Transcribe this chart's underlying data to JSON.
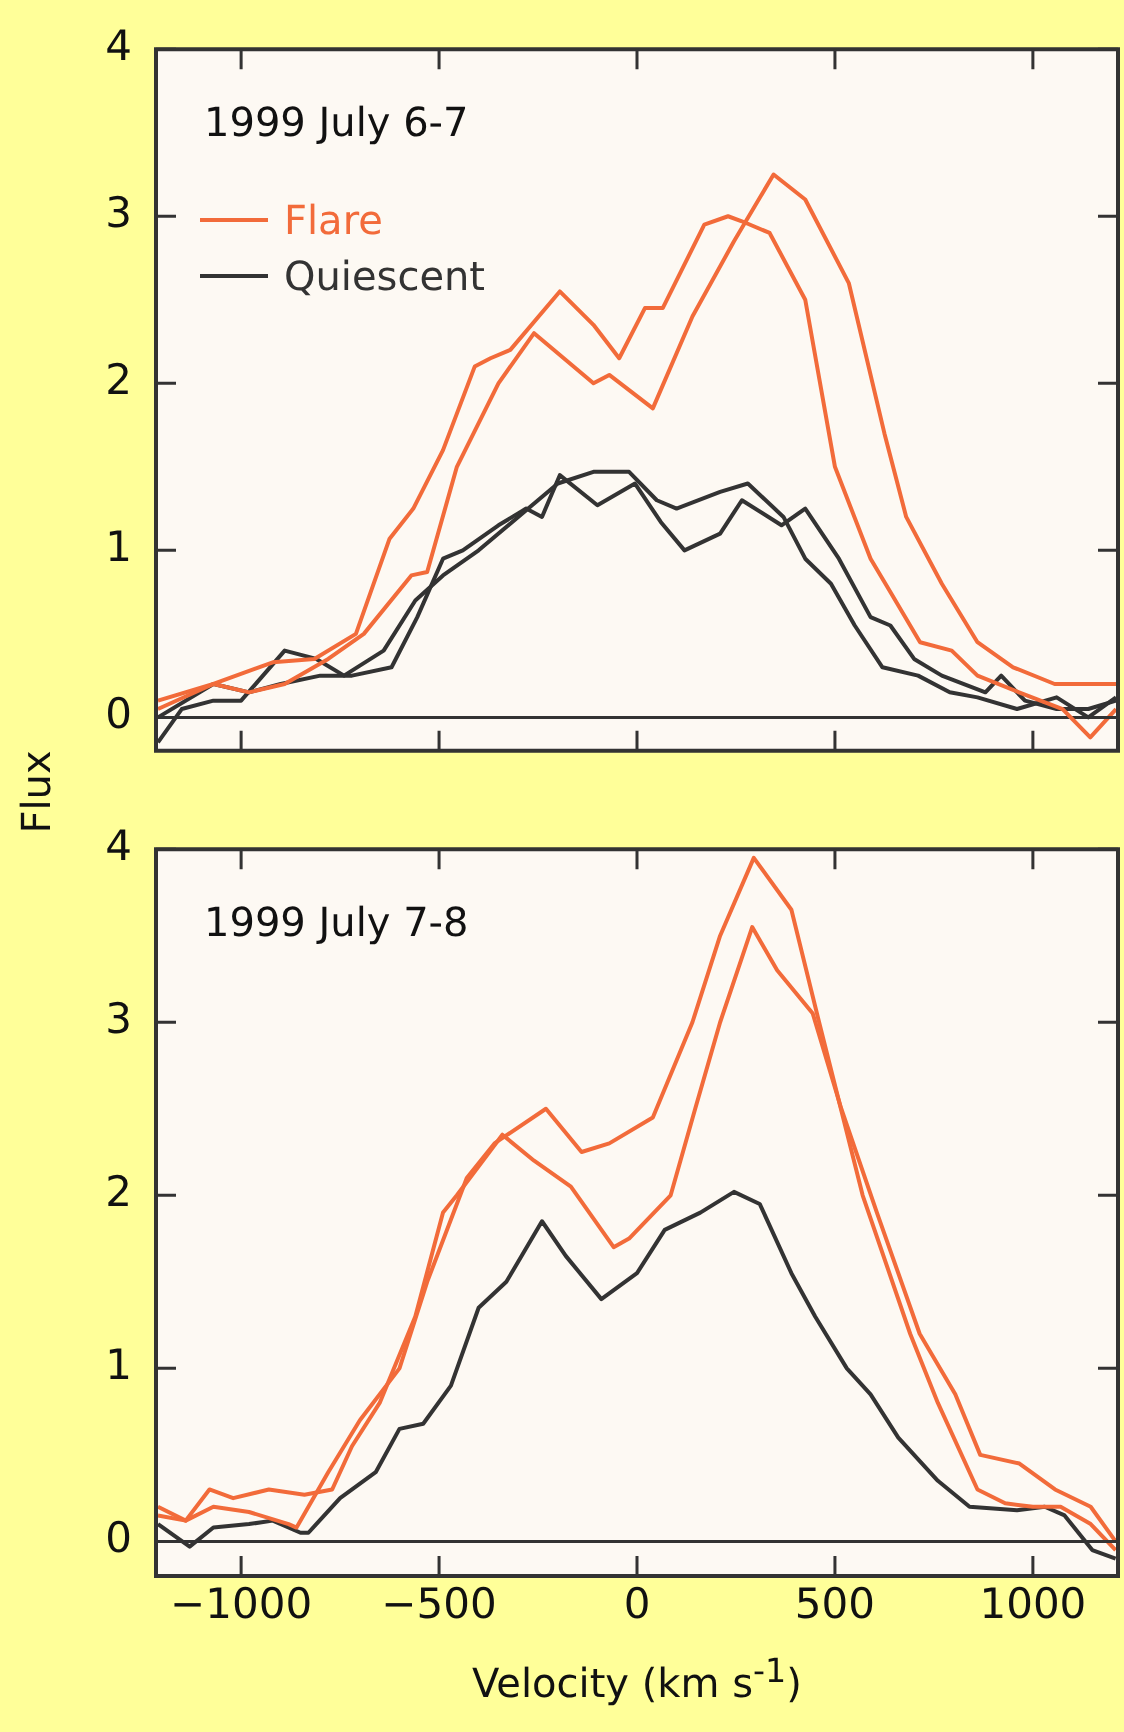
{
  "chart_data": [
    {
      "type": "line",
      "ylabel": "Flux",
      "annotations": [
        "1999 July 6-7"
      ],
      "legend": "top left",
      "tick_labels": "y",
      "marker": "none",
      "line_style": "solid",
      "xlim": [
        -1215,
        1215
      ],
      "xticks": [
        -1000,
        -500,
        0,
        500,
        1000
      ],
      "ylim": [
        -0.2,
        4
      ],
      "yticks": [
        0,
        1,
        2,
        3,
        4
      ],
      "ref_lines": [
        {
          "axis": "y",
          "value": 0,
          "color": "#333333"
        }
      ],
      "series": [
        {
          "name": "Flare",
          "color": "#f26b3a",
          "x": [
            -1210,
            -1070,
            -920,
            -815,
            -710,
            -625,
            -565,
            -490,
            -410,
            -370,
            -320,
            -195,
            -110,
            -45,
            20,
            65,
            170,
            230,
            265,
            335,
            425,
            500,
            590,
            640,
            715,
            795,
            860,
            965,
            1075,
            1145,
            1210
          ],
          "values": [
            0.1,
            0.2,
            0.33,
            0.35,
            0.5,
            1.07,
            1.25,
            1.6,
            2.1,
            2.15,
            2.2,
            2.55,
            2.35,
            2.15,
            2.45,
            2.45,
            2.95,
            3.0,
            2.97,
            2.9,
            2.5,
            1.5,
            0.95,
            0.75,
            0.45,
            0.4,
            0.25,
            0.15,
            0.05,
            -0.12,
            0.05
          ]
        },
        {
          "color": "#f26b3a",
          "x": [
            -1210,
            -1070,
            -980,
            -890,
            -780,
            -690,
            -570,
            -530,
            -455,
            -350,
            -260,
            -110,
            -70,
            40,
            140,
            245,
            345,
            425,
            535,
            625,
            680,
            770,
            860,
            950,
            1055,
            1210
          ],
          "values": [
            0.05,
            0.2,
            0.15,
            0.2,
            0.35,
            0.5,
            0.85,
            0.87,
            1.5,
            2.0,
            2.3,
            2.0,
            2.05,
            1.85,
            2.4,
            2.85,
            3.25,
            3.1,
            2.6,
            1.7,
            1.2,
            0.8,
            0.45,
            0.3,
            0.2,
            0.2
          ]
        },
        {
          "name": "Quiescent",
          "color": "#333333",
          "x": [
            -1210,
            -1150,
            -1070,
            -1000,
            -890,
            -810,
            -740,
            -640,
            -560,
            -490,
            -400,
            -300,
            -200,
            -110,
            -20,
            50,
            100,
            210,
            280,
            370,
            425,
            490,
            550,
            620,
            710,
            790,
            860,
            960,
            1060,
            1140,
            1210
          ],
          "values": [
            -0.15,
            0.05,
            0.1,
            0.1,
            0.4,
            0.35,
            0.25,
            0.4,
            0.7,
            0.85,
            1.0,
            1.2,
            1.4,
            1.47,
            1.47,
            1.3,
            1.25,
            1.35,
            1.4,
            1.2,
            0.95,
            0.8,
            0.55,
            0.3,
            0.25,
            0.15,
            0.12,
            0.05,
            0.12,
            0.0,
            0.12
          ]
        },
        {
          "color": "#333333",
          "x": [
            -1210,
            -1070,
            -980,
            -900,
            -800,
            -720,
            -620,
            -555,
            -490,
            -440,
            -350,
            -280,
            -240,
            -195,
            -100,
            -5,
            60,
            120,
            210,
            265,
            365,
            425,
            510,
            590,
            640,
            700,
            770,
            880,
            920,
            980,
            1060,
            1140,
            1210
          ],
          "values": [
            0.0,
            0.2,
            0.15,
            0.2,
            0.25,
            0.25,
            0.3,
            0.6,
            0.95,
            1.0,
            1.15,
            1.25,
            1.2,
            1.45,
            1.27,
            1.4,
            1.17,
            1.0,
            1.1,
            1.3,
            1.15,
            1.25,
            0.95,
            0.6,
            0.55,
            0.35,
            0.25,
            0.15,
            0.25,
            0.1,
            0.05,
            0.05,
            0.1
          ]
        }
      ]
    },
    {
      "type": "line",
      "xlabel": "Velocity (km s$^{-1}$)",
      "annotations": [
        "1999 July 7-8"
      ],
      "marker": "none",
      "line_style": "solid",
      "xlim": [
        -1215,
        1215
      ],
      "xticks": [
        -1000,
        -500,
        0,
        500,
        1000
      ],
      "ylim": [
        -0.2,
        4
      ],
      "yticks": [
        0,
        1,
        2,
        3,
        4
      ],
      "ref_lines": [
        {
          "axis": "y",
          "value": 0,
          "color": "#333333"
        }
      ],
      "series": [
        {
          "color": "#f26b3a",
          "x": [
            -1210,
            -1140,
            -1070,
            -980,
            -880,
            -860,
            -780,
            -700,
            -600,
            -530,
            -430,
            -360,
            -230,
            -140,
            -70,
            40,
            140,
            210,
            295,
            390,
            460,
            570,
            690,
            760,
            860,
            930,
            1000,
            1070,
            1146,
            1209
          ],
          "values": [
            0.15,
            0.12,
            0.2,
            0.17,
            0.1,
            0.08,
            0.4,
            0.7,
            1.0,
            1.5,
            2.1,
            2.3,
            2.5,
            2.25,
            2.3,
            2.45,
            3.0,
            3.5,
            3.95,
            3.65,
            3.0,
            2.0,
            1.2,
            0.8,
            0.3,
            0.22,
            0.2,
            0.2,
            0.1,
            -0.05
          ]
        },
        {
          "color": "#f26b3a",
          "x": [
            -1210,
            -1140,
            -1080,
            -1020,
            -930,
            -840,
            -770,
            -720,
            -650,
            -560,
            -490,
            -455,
            -340,
            -260,
            -167,
            -59,
            -20,
            85,
            147,
            210,
            291,
            354,
            444,
            516,
            606,
            714,
            804,
            867,
            966,
            1056,
            1146,
            1209
          ],
          "values": [
            0.2,
            0.12,
            0.3,
            0.25,
            0.3,
            0.27,
            0.3,
            0.55,
            0.8,
            1.3,
            1.9,
            2.0,
            2.35,
            2.2,
            2.05,
            1.7,
            1.75,
            2.0,
            2.5,
            3.0,
            3.55,
            3.3,
            3.05,
            2.5,
            1.9,
            1.2,
            0.85,
            0.5,
            0.45,
            0.3,
            0.2,
            0.0
          ]
        },
        {
          "color": "#333333",
          "x": [
            -1210,
            -1130,
            -1070,
            -980,
            -920,
            -850,
            -830,
            -750,
            -660,
            -600,
            -540,
            -470,
            -400,
            -330,
            -240,
            -180,
            -90,
            0,
            70,
            160,
            245,
            310,
            390,
            450,
            530,
            590,
            660,
            760,
            840,
            960,
            1030,
            1080,
            1150,
            1209
          ],
          "values": [
            0.1,
            -0.03,
            0.08,
            0.1,
            0.12,
            0.05,
            0.05,
            0.25,
            0.4,
            0.65,
            0.68,
            0.9,
            1.35,
            1.5,
            1.85,
            1.65,
            1.4,
            1.55,
            1.8,
            1.9,
            2.02,
            1.95,
            1.55,
            1.3,
            1.0,
            0.85,
            0.6,
            0.35,
            0.2,
            0.18,
            0.2,
            0.15,
            -0.05,
            -0.1
          ]
        }
      ]
    }
  ]
}
